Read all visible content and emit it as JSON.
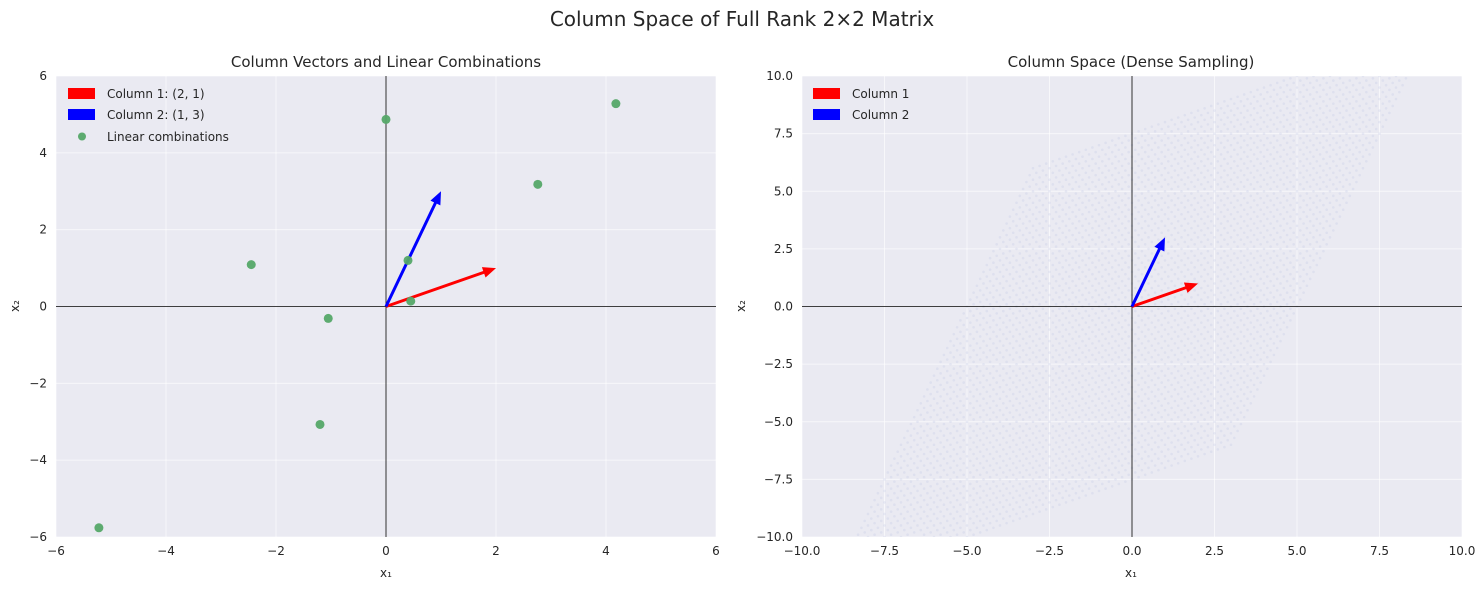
{
  "figure": {
    "title": "Column Space of Full Rank 2×2 Matrix"
  },
  "colors": {
    "axes_bg": "#eaeaf2",
    "grid": "#ffffff",
    "col1": "#ff0000",
    "col2": "#0000ff",
    "points": "#55a868",
    "dense": "#c9cfe8"
  },
  "chart_data": [
    {
      "type": "scatter",
      "title": "Column Vectors and Linear Combinations",
      "xlabel": "x₁",
      "ylabel": "x₂",
      "xlim": [
        -6,
        6
      ],
      "ylim": [
        -6,
        6
      ],
      "xticks": [
        -6,
        -4,
        -2,
        0,
        2,
        4,
        6
      ],
      "yticks": [
        -6,
        -4,
        -2,
        0,
        2,
        4,
        6
      ],
      "xtick_labels": [
        "−6",
        "−4",
        "−2",
        "0",
        "2",
        "4",
        "6"
      ],
      "ytick_labels": [
        "−6",
        "−4",
        "−2",
        "0",
        "2",
        "4",
        "6"
      ],
      "grid": true,
      "legend_position": "top-left",
      "vectors": [
        {
          "name": "Column 1: (2, 1)",
          "x": 2,
          "y": 1,
          "color": "#ff0000"
        },
        {
          "name": "Column 2: (1, 3)",
          "x": 1,
          "y": 3,
          "color": "#0000ff"
        }
      ],
      "series": [
        {
          "name": "Linear combinations",
          "color": "#55a868",
          "points": [
            [
              0.0,
              4.87
            ],
            [
              4.18,
              5.28
            ],
            [
              2.76,
              3.18
            ],
            [
              -2.45,
              1.09
            ],
            [
              0.4,
              1.2
            ],
            [
              0.45,
              0.14
            ],
            [
              -1.05,
              -0.31
            ],
            [
              -1.2,
              -3.07
            ],
            [
              -5.22,
              -5.76
            ]
          ]
        }
      ]
    },
    {
      "type": "scatter",
      "title": "Column Space (Dense Sampling)",
      "xlabel": "x₁",
      "ylabel": "x₂",
      "xlim": [
        -10,
        10
      ],
      "ylim": [
        -10,
        10
      ],
      "xticks": [
        -10,
        -7.5,
        -5,
        -2.5,
        0,
        2.5,
        5,
        7.5,
        10
      ],
      "yticks": [
        -10,
        -7.5,
        -5,
        -2.5,
        0,
        2.5,
        5,
        7.5,
        10
      ],
      "xtick_labels": [
        "−10.0",
        "−7.5",
        "−5.0",
        "−2.5",
        "0.0",
        "2.5",
        "5.0",
        "7.5",
        "10.0"
      ],
      "ytick_labels": [
        "−10.0",
        "−7.5",
        "−5.0",
        "−2.5",
        "0.0",
        "2.5",
        "5.0",
        "7.5",
        "10.0"
      ],
      "grid": true,
      "legend_position": "top-left",
      "vectors": [
        {
          "name": "Column 1",
          "x": 2,
          "y": 1,
          "color": "#ff0000"
        },
        {
          "name": "Column 2",
          "x": 1,
          "y": 3,
          "color": "#0000ff"
        }
      ],
      "dense_sampling": {
        "coef_range": [
          -3,
          3
        ],
        "basis": [
          [
            2,
            1
          ],
          [
            1,
            3
          ]
        ]
      }
    }
  ]
}
